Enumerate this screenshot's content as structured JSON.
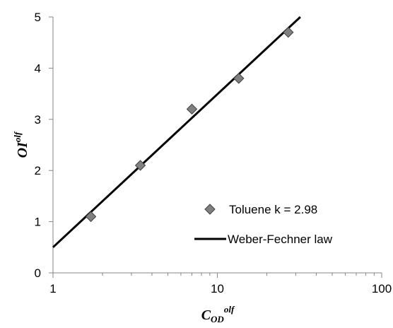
{
  "chart_data": {
    "type": "scatter",
    "xscale": "log",
    "xlim": [
      1,
      100
    ],
    "ylim": [
      0,
      5
    ],
    "x_ticks": [
      1,
      10,
      100
    ],
    "x_tick_labels": [
      "1",
      "10",
      "100"
    ],
    "y_ticks": [
      0,
      1,
      2,
      3,
      4,
      5
    ],
    "y_tick_labels": [
      "0",
      "1",
      "2",
      "3",
      "4",
      "5"
    ],
    "grid": false,
    "legend_position": "bottom-right",
    "xlabel": {
      "main": "C",
      "sub": "OD",
      "sup": "olf"
    },
    "ylabel": {
      "main": "OI",
      "sup": "olf"
    },
    "series": [
      {
        "name": "Toluene k = 2.98",
        "kind": "markers",
        "marker": "diamond",
        "color": "#808080",
        "x": [
          1.7,
          3.4,
          7.0,
          13.5,
          27.0
        ],
        "y": [
          1.1,
          2.1,
          3.2,
          3.8,
          4.7
        ]
      },
      {
        "name": "Weber-Fechner law",
        "kind": "line",
        "color": "#000000",
        "x": [
          1,
          32
        ],
        "y": [
          0.5,
          5.0
        ]
      }
    ]
  }
}
